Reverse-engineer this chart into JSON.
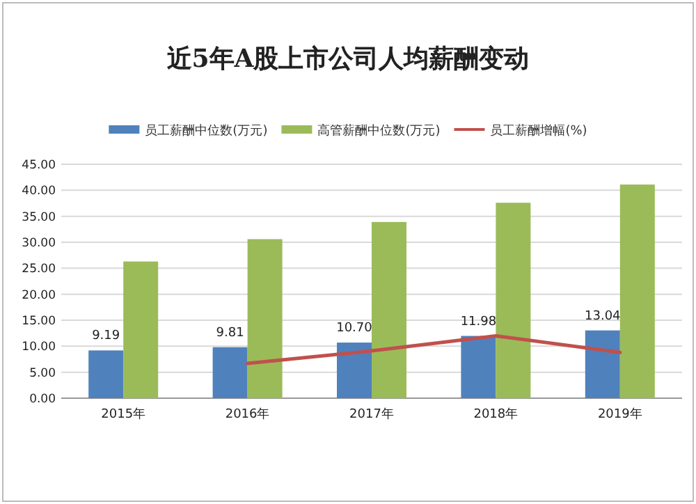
{
  "chart_data": {
    "type": "bar",
    "title": "近5年A股上市公司人均薪酬变动",
    "categories": [
      "2015年",
      "2016年",
      "2017年",
      "2018年",
      "2019年"
    ],
    "series": [
      {
        "name": "员工薪酬中位数(万元)",
        "color": "#4f81bd",
        "values": [
          9.19,
          9.81,
          10.7,
          11.98,
          13.04
        ],
        "value_labels": [
          "9.19",
          "9.81",
          "10.70",
          "11.98",
          "13.04"
        ]
      },
      {
        "name": "高管薪酬中位数(万元)",
        "color": "#9bbb59",
        "values": [
          26.3,
          30.6,
          33.9,
          37.6,
          41.1
        ]
      },
      {
        "name": "员工薪酬增幅(%)",
        "type": "line",
        "color": "#c0504d",
        "values": [
          null,
          6.7,
          9.1,
          12.0,
          8.8
        ]
      }
    ],
    "ylim": [
      0,
      45
    ],
    "yticks": [
      {
        "value": 0,
        "label": "0.00"
      },
      {
        "value": 5,
        "label": "5.00"
      },
      {
        "value": 10,
        "label": "10.00"
      },
      {
        "value": 15,
        "label": "15.00"
      },
      {
        "value": 20,
        "label": "20.00"
      },
      {
        "value": 25,
        "label": "25.00"
      },
      {
        "value": 30,
        "label": "30.00"
      },
      {
        "value": 35,
        "label": "35.00"
      },
      {
        "value": 40,
        "label": "40.00"
      },
      {
        "value": 45,
        "label": "45.00"
      }
    ],
    "grid": "y",
    "legend": "top"
  }
}
